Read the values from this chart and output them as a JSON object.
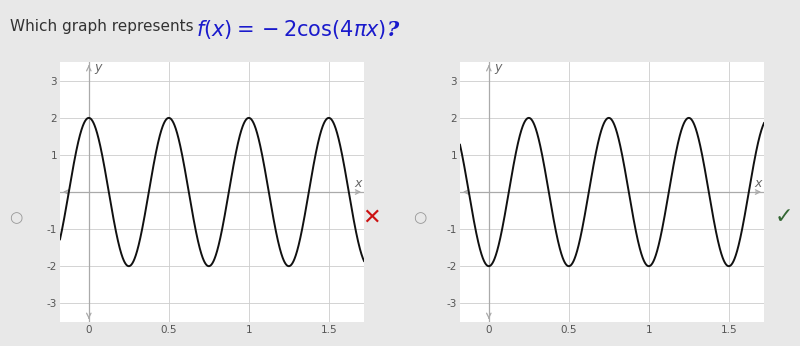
{
  "bg_left": "#f5c6cb",
  "bg_right": "#fafae0",
  "graph_bg": "#ffffff",
  "curve_color": "#111111",
  "grid_color": "#cccccc",
  "axis_color": "#aaaaaa",
  "title_bg": "#cce0f5",
  "title_text_color": "#333333",
  "formula_color": "#1a1acc",
  "wrong_mark_color": "#cc1111",
  "correct_mark_color": "#336633",
  "xlim": [
    -0.18,
    1.72
  ],
  "ylim": [
    -3.5,
    3.5
  ],
  "xticks": [
    0,
    0.5,
    1.0,
    1.5
  ],
  "yticks": [
    -3,
    -2,
    -1,
    1,
    2,
    3
  ],
  "xticklabels": [
    "0",
    "0.5",
    "1",
    "1.5"
  ],
  "yticklabels_left": [
    "-3",
    "-2",
    "-1",
    "1",
    "2",
    "3"
  ],
  "amplitude": 2,
  "omega": 4,
  "title_fontsize": 11,
  "formula_fontsize": 15,
  "tick_fontsize": 7.5,
  "axis_label_fontsize": 9
}
